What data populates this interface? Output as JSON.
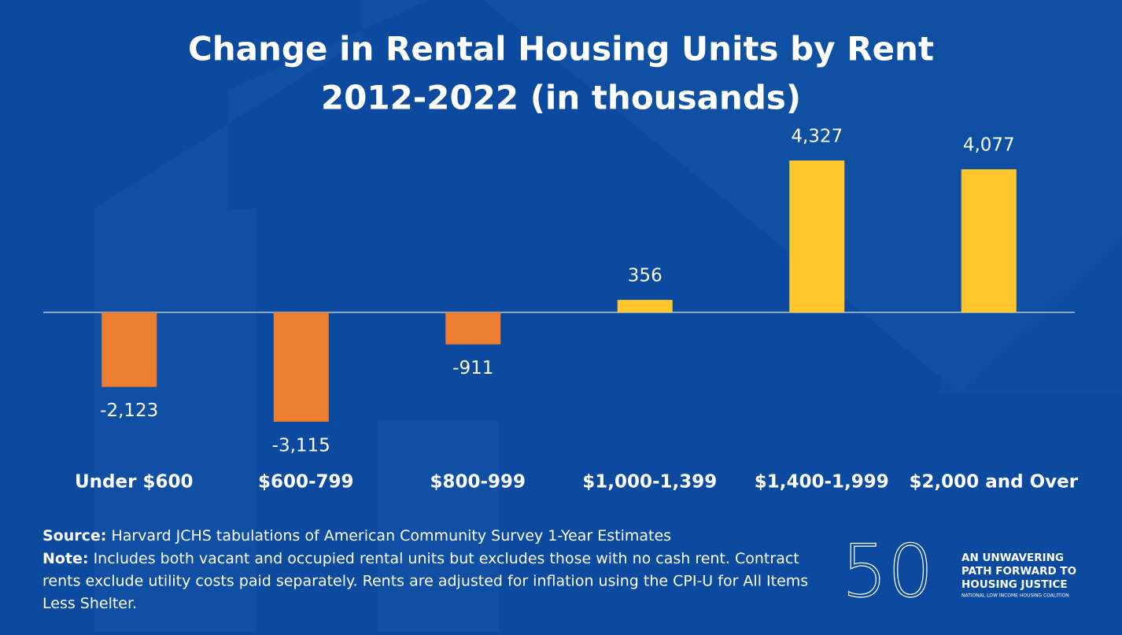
{
  "chart_data": {
    "type": "bar",
    "title": "Change in Rental Housing Units by Rent",
    "subtitle": "2012-2022 (in thousands)",
    "categories": [
      "Under $600",
      "$600-799",
      "$800-999",
      "$1,000-1,399",
      "$1,400-1,999",
      "$2,000 and Over"
    ],
    "values": [
      -2123,
      -3115,
      -911,
      356,
      4327,
      4077
    ],
    "value_labels": [
      "-2,123",
      "-3,115",
      "-911",
      "356",
      "4,327",
      "4,077"
    ],
    "colors": [
      "#ed7d31",
      "#ed7d31",
      "#ed7d31",
      "#ffc72c",
      "#ffc72c",
      "#ffc72c"
    ],
    "source": {
      "label": "Source:",
      "text": "Harvard JCHS tabulations of American Community Survey 1-Year Estimates"
    },
    "note": {
      "label": "Note:",
      "lines": [
        "Includes both vacant and occupied rental units but excludes those with no cash rent. Contract",
        "rents exclude utility costs paid separately. Rents are adjusted for inflation using the CPI-U for All Items",
        "Less Shelter."
      ]
    },
    "logo": {
      "number": "50",
      "lines": [
        "AN UNWAVERING",
        "PATH FORWARD TO",
        "HOUSING JUSTICE"
      ],
      "tagline": "NATIONAL LOW INCOME HOUSING COALITION"
    }
  }
}
